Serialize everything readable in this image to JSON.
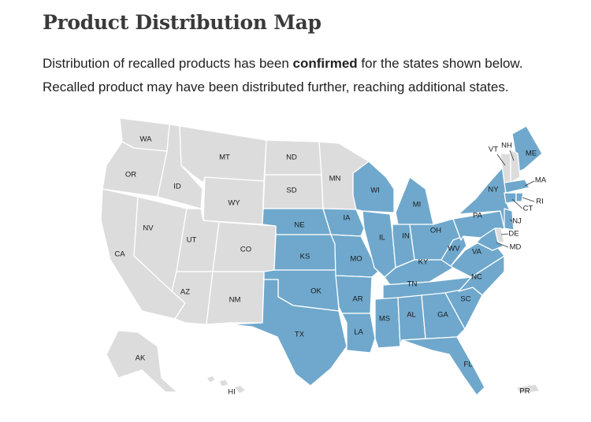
{
  "header": {
    "title": "Product Distribution Map",
    "line1_before": "Distribution of recalled products has been ",
    "line1_bold": "confirmed",
    "line1_after": " for the states shown below.",
    "line2": "Recalled product may have been distributed further, reaching additional states."
  },
  "colors": {
    "confirmed": "#6fa8cc",
    "not_confirmed": "#dcdcdc",
    "border": "#ffffff"
  },
  "map": {
    "confirmed_states": [
      "NE",
      "KS",
      "OK",
      "TX",
      "IA",
      "MO",
      "AR",
      "LA",
      "MS",
      "WI",
      "MI",
      "IL",
      "IN",
      "OH",
      "KY",
      "TN",
      "AL",
      "GA",
      "FL",
      "SC",
      "NC",
      "VA",
      "WV",
      "PA",
      "NY",
      "ME",
      "MA",
      "CT",
      "RI",
      "NJ",
      "MD"
    ],
    "not_confirmed_states": [
      "WA",
      "OR",
      "CA",
      "ID",
      "NV",
      "MT",
      "WY",
      "UT",
      "CO",
      "AZ",
      "NM",
      "ND",
      "SD",
      "MN",
      "VT",
      "NH",
      "DE",
      "AK",
      "HI",
      "PR"
    ],
    "labels": [
      "WA",
      "OR",
      "CA",
      "ID",
      "NV",
      "MT",
      "WY",
      "UT",
      "CO",
      "AZ",
      "NM",
      "ND",
      "SD",
      "NE",
      "KS",
      "OK",
      "TX",
      "MN",
      "IA",
      "MO",
      "AR",
      "LA",
      "WI",
      "IL",
      "MI",
      "IN",
      "OH",
      "KY",
      "TN",
      "MS",
      "AL",
      "GA",
      "FL",
      "SC",
      "NC",
      "VA",
      "WV",
      "PA",
      "NY",
      "ME",
      "VT",
      "NH",
      "MA",
      "RI",
      "CT",
      "NJ",
      "DE",
      "MD",
      "AK",
      "HI",
      "PR"
    ]
  }
}
